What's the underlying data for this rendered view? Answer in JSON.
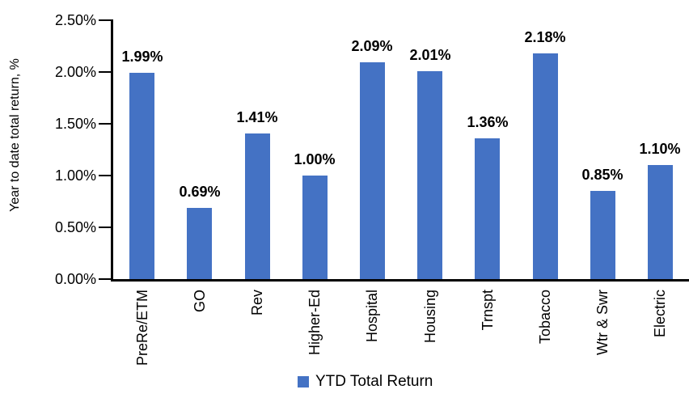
{
  "chart_data": {
    "type": "bar",
    "title": "",
    "categories": [
      "PreRe/ETM",
      "GO",
      "Rev",
      "Higher-Ed",
      "Hospital",
      "Housing",
      "Trnspt",
      "Tobacco",
      "Wtr & Swr",
      "Electric"
    ],
    "values": [
      1.99,
      0.69,
      1.41,
      1.0,
      2.09,
      2.01,
      1.36,
      2.18,
      0.85,
      1.1
    ],
    "data_labels": [
      "1.99%",
      "0.69%",
      "1.41%",
      "1.00%",
      "2.09%",
      "2.01%",
      "1.36%",
      "2.18%",
      "0.85%",
      "1.10%"
    ],
    "xlabel": "",
    "ylabel": "Year to date total return, %",
    "ylim": [
      0,
      2.5
    ],
    "ytick_step": 0.5,
    "ytick_labels": [
      "0.00%",
      "0.50%",
      "1.00%",
      "1.50%",
      "2.00%",
      "2.50%"
    ],
    "grid": false,
    "legend_position": "bottom",
    "legend": [
      {
        "label": "YTD Total Return",
        "color": "#4472C4"
      }
    ],
    "bar_color": "#4472C4",
    "axis_color": "#000000",
    "text_color": "#000000"
  }
}
